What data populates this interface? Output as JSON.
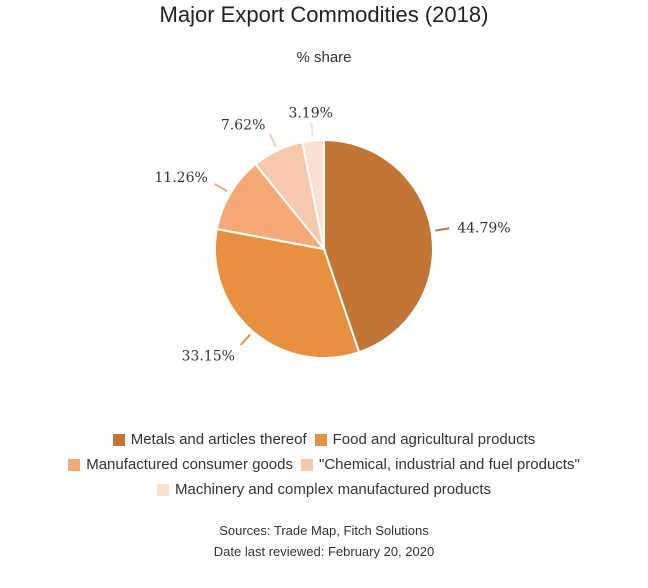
{
  "chart_data": {
    "type": "pie",
    "title": "Major Export Commodities (2018)",
    "subtitle": "% share",
    "slices": [
      {
        "name": "Metals and articles thereof",
        "value": 44.79,
        "label": "44.79%",
        "color": "#c27635"
      },
      {
        "name": "Food and agricultural products",
        "value": 33.15,
        "label": "33.15%",
        "color": "#e8903f"
      },
      {
        "name": "Manufactured consumer goods",
        "value": 11.26,
        "label": "11.26%",
        "color": "#f5a976"
      },
      {
        "name": "\"Chemical, industrial and fuel products\"",
        "value": 7.62,
        "label": "7.62%",
        "color": "#f8c8ac"
      },
      {
        "name": "Machinery and complex manufactured products",
        "value": 3.19,
        "label": "3.19%",
        "color": "#fbe0d2"
      }
    ],
    "legend_position": "bottom"
  },
  "footer": {
    "sources": "Sources: Trade Map, Fitch Solutions",
    "reviewed": "Date last reviewed: February 20, 2020"
  }
}
